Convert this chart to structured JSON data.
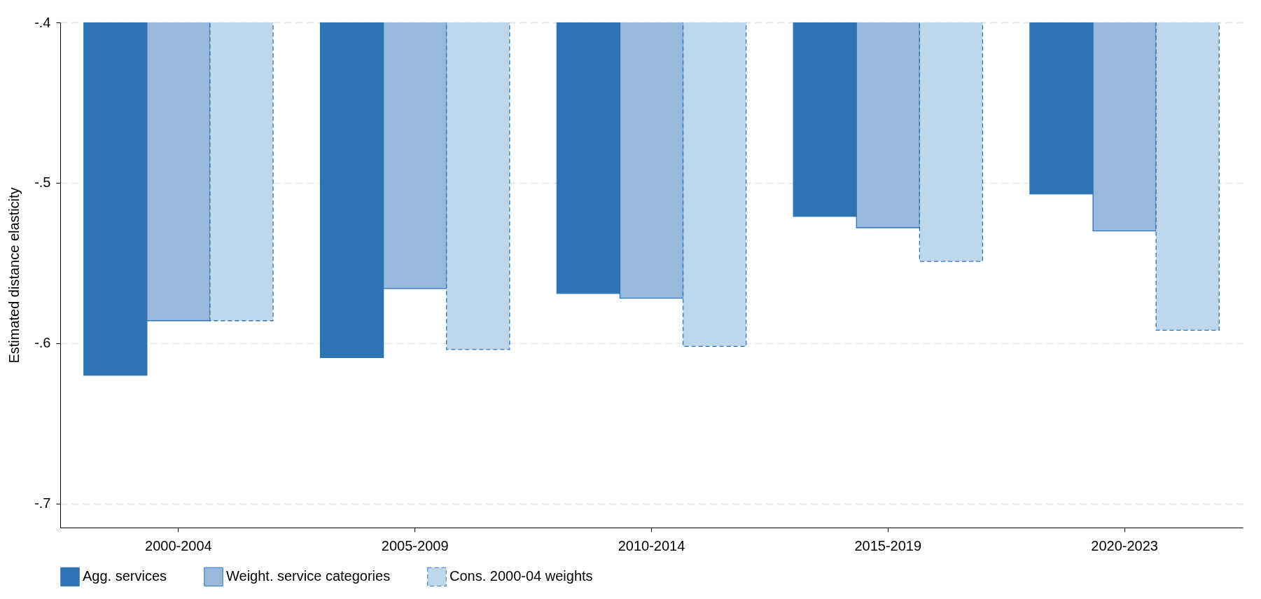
{
  "chart_data": {
    "type": "bar",
    "ylabel": "Estimated distance elasticity",
    "categories": [
      "2000-2004",
      "2005-2009",
      "2010-2014",
      "2015-2019",
      "2020-2023"
    ],
    "series": [
      {
        "name": "Agg. services",
        "color": "#2e74b5",
        "values": [
          -0.62,
          -0.609,
          -0.569,
          -0.521,
          -0.507
        ]
      },
      {
        "name": "Weight. service categories",
        "color": "#97b9db",
        "values": [
          -0.586,
          -0.566,
          -0.572,
          -0.528,
          -0.53
        ]
      },
      {
        "name": "Cons. 2000-04 weights",
        "color": "#bfd7ea",
        "line_style": "dashed",
        "values": [
          -0.586,
          -0.604,
          -0.602,
          -0.549,
          -0.592
        ]
      }
    ],
    "ylim": [
      -0.715,
      -0.4
    ],
    "yticks": [
      {
        "value": -0.7,
        "label": "-.7"
      },
      {
        "value": -0.6,
        "label": "-.6"
      },
      {
        "value": -0.5,
        "label": "-.5"
      },
      {
        "value": -0.4,
        "label": "-.4"
      }
    ],
    "grid": "y",
    "legend": "bottom"
  }
}
